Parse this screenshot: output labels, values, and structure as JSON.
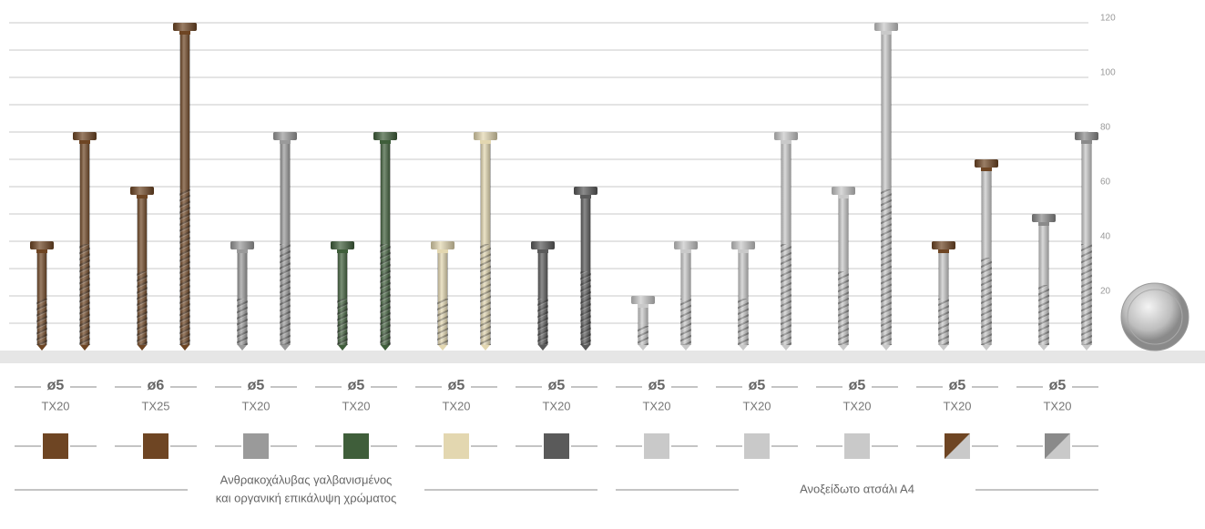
{
  "chart_data": {
    "type": "screws",
    "ylim": [
      0,
      120
    ],
    "yticks": [
      20,
      40,
      60,
      80,
      100,
      120
    ],
    "minor_yticks": [
      10,
      30,
      50,
      70,
      90,
      110
    ],
    "grid": true,
    "materials": [
      {
        "label": [
          "Ανθρακοχάλυβας γαλβανισμένος",
          "και οργανική επικάλυψη χρώματος"
        ],
        "groups": [
          {
            "diameter": "ø5",
            "drive": "TX20",
            "head_color": "#6e4523",
            "body_color": "#6e4523",
            "lengths": [
              40,
              80
            ]
          },
          {
            "diameter": "ø6",
            "drive": "TX25",
            "head_color": "#6e4523",
            "body_color": "#6e4523",
            "lengths": [
              60,
              120
            ]
          },
          {
            "diameter": "ø5",
            "drive": "TX20",
            "head_color": "#9a9a9a",
            "body_color": "#9a9a9a",
            "lengths": [
              40,
              80
            ]
          },
          {
            "diameter": "ø5",
            "drive": "TX20",
            "head_color": "#3f5e3a",
            "body_color": "#3f5e3a",
            "lengths": [
              40,
              80
            ]
          },
          {
            "diameter": "ø5",
            "drive": "TX20",
            "head_color": "#e3d7b0",
            "body_color": "#e3d7b0",
            "lengths": [
              40,
              80
            ]
          },
          {
            "diameter": "ø5",
            "drive": "TX20",
            "head_color": "#5a5a5a",
            "body_color": "#5a5a5a",
            "lengths": [
              40,
              60
            ]
          }
        ]
      },
      {
        "label": [
          "Ανοξείδωτο ατσάλι Α4"
        ],
        "groups": [
          {
            "diameter": "ø5",
            "drive": "TX20",
            "head_color": "#c9c9c9",
            "body_color": "#c9c9c9",
            "lengths": [
              20,
              40
            ]
          },
          {
            "diameter": "ø5",
            "drive": "TX20",
            "head_color": "#c9c9c9",
            "body_color": "#c9c9c9",
            "lengths": [
              40,
              80
            ]
          },
          {
            "diameter": "ø5",
            "drive": "TX20",
            "head_color": "#c9c9c9",
            "body_color": "#c9c9c9",
            "lengths": [
              60,
              120
            ]
          },
          {
            "diameter": "ø5",
            "drive": "TX20",
            "head_color": "#6e4523",
            "body_color": "#c9c9c9",
            "lengths": [
              40,
              70
            ]
          },
          {
            "diameter": "ø5",
            "drive": "TX20",
            "head_color": "#8a8a8a",
            "body_color": "#c9c9c9",
            "lengths": [
              50,
              80
            ]
          }
        ]
      }
    ]
  }
}
